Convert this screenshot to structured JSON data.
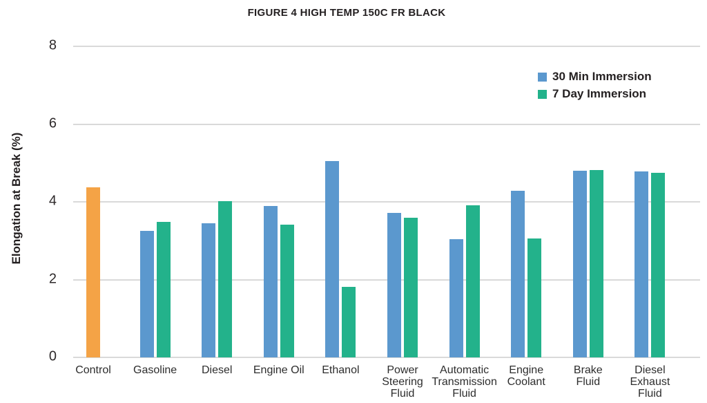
{
  "title": "FIGURE 4 HIGH TEMP 150C FR BLACK",
  "chart_data": {
    "type": "bar",
    "title": "FIGURE 4 HIGH TEMP 150C FR BLACK",
    "ylabel": "Elongation at Break (%)",
    "xlabel": "",
    "ylim": [
      0,
      8
    ],
    "yticks": [
      0,
      2,
      4,
      6,
      8
    ],
    "grid": true,
    "legend_position": "top-right",
    "background_color": "#ffffff",
    "gridline_color": "#d9d9d9",
    "categories": [
      "Control",
      "Gasoline",
      "Diesel",
      "Engine Oil",
      "Ethanol",
      "Power\nSteering\nFluid",
      "Automatic\nTransmission\nFluid",
      "Engine\nCoolant",
      "Brake\nFluid",
      "Diesel\nExhaust\nFluid"
    ],
    "control": {
      "label": "Control",
      "color": "#f4a346",
      "value": 4.38
    },
    "series": [
      {
        "name": "30 Min Immersion",
        "color": "#5b98ce",
        "values": [
          null,
          3.25,
          3.45,
          3.9,
          5.05,
          3.72,
          3.04,
          4.28,
          4.8,
          4.79
        ]
      },
      {
        "name": "7 Day Immersion",
        "color": "#23b28b",
        "values": [
          null,
          3.48,
          4.02,
          3.41,
          1.82,
          3.6,
          3.92,
          3.06,
          4.82,
          4.74
        ]
      }
    ]
  }
}
